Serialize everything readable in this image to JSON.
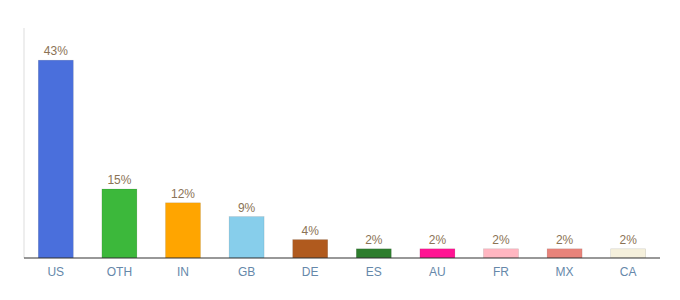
{
  "chart_data": {
    "type": "bar",
    "categories": [
      "US",
      "OTH",
      "IN",
      "GB",
      "DE",
      "ES",
      "AU",
      "FR",
      "MX",
      "CA"
    ],
    "values": [
      43,
      15,
      12,
      9,
      4,
      2,
      2,
      2,
      2,
      2
    ],
    "value_labels": [
      "43%",
      "15%",
      "12%",
      "9%",
      "4%",
      "2%",
      "2%",
      "2%",
      "2%",
      "2%"
    ],
    "colors": [
      "#4a6fdc",
      "#3cb83b",
      "#ffa500",
      "#87ceeb",
      "#b05a1e",
      "#2d7d2d",
      "#ff1493",
      "#ffb6c1",
      "#e8837a",
      "#f5f0dc"
    ],
    "ylim": [
      0,
      50
    ],
    "grid": false,
    "data_labels": true,
    "tick_labels": "x"
  }
}
